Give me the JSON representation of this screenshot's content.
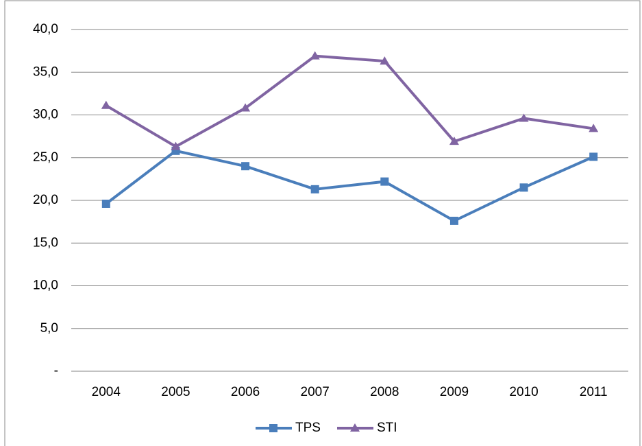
{
  "chart_data": {
    "type": "line",
    "categories": [
      "2004",
      "2005",
      "2006",
      "2007",
      "2008",
      "2009",
      "2010",
      "2011"
    ],
    "series": [
      {
        "name": "TPS",
        "color": "#4a7ebb",
        "marker": "square",
        "values": [
          19.6,
          25.8,
          24.0,
          21.3,
          22.2,
          17.6,
          21.5,
          25.1
        ]
      },
      {
        "name": "STI",
        "color": "#8064a2",
        "marker": "triangle",
        "values": [
          31.1,
          26.3,
          30.8,
          36.9,
          36.3,
          26.9,
          29.6,
          28.4
        ]
      }
    ],
    "ylim": [
      0,
      40
    ],
    "yticks": [
      {
        "value": 0,
        "label": "-"
      },
      {
        "value": 5,
        "label": "5,0"
      },
      {
        "value": 10,
        "label": "10,0"
      },
      {
        "value": 15,
        "label": "15,0"
      },
      {
        "value": 20,
        "label": "20,0"
      },
      {
        "value": 25,
        "label": "25,0"
      },
      {
        "value": 30,
        "label": "30,0"
      },
      {
        "value": 35,
        "label": "35,0"
      },
      {
        "value": 40,
        "label": "40,0"
      }
    ],
    "grid": true,
    "legend": "bottom"
  }
}
